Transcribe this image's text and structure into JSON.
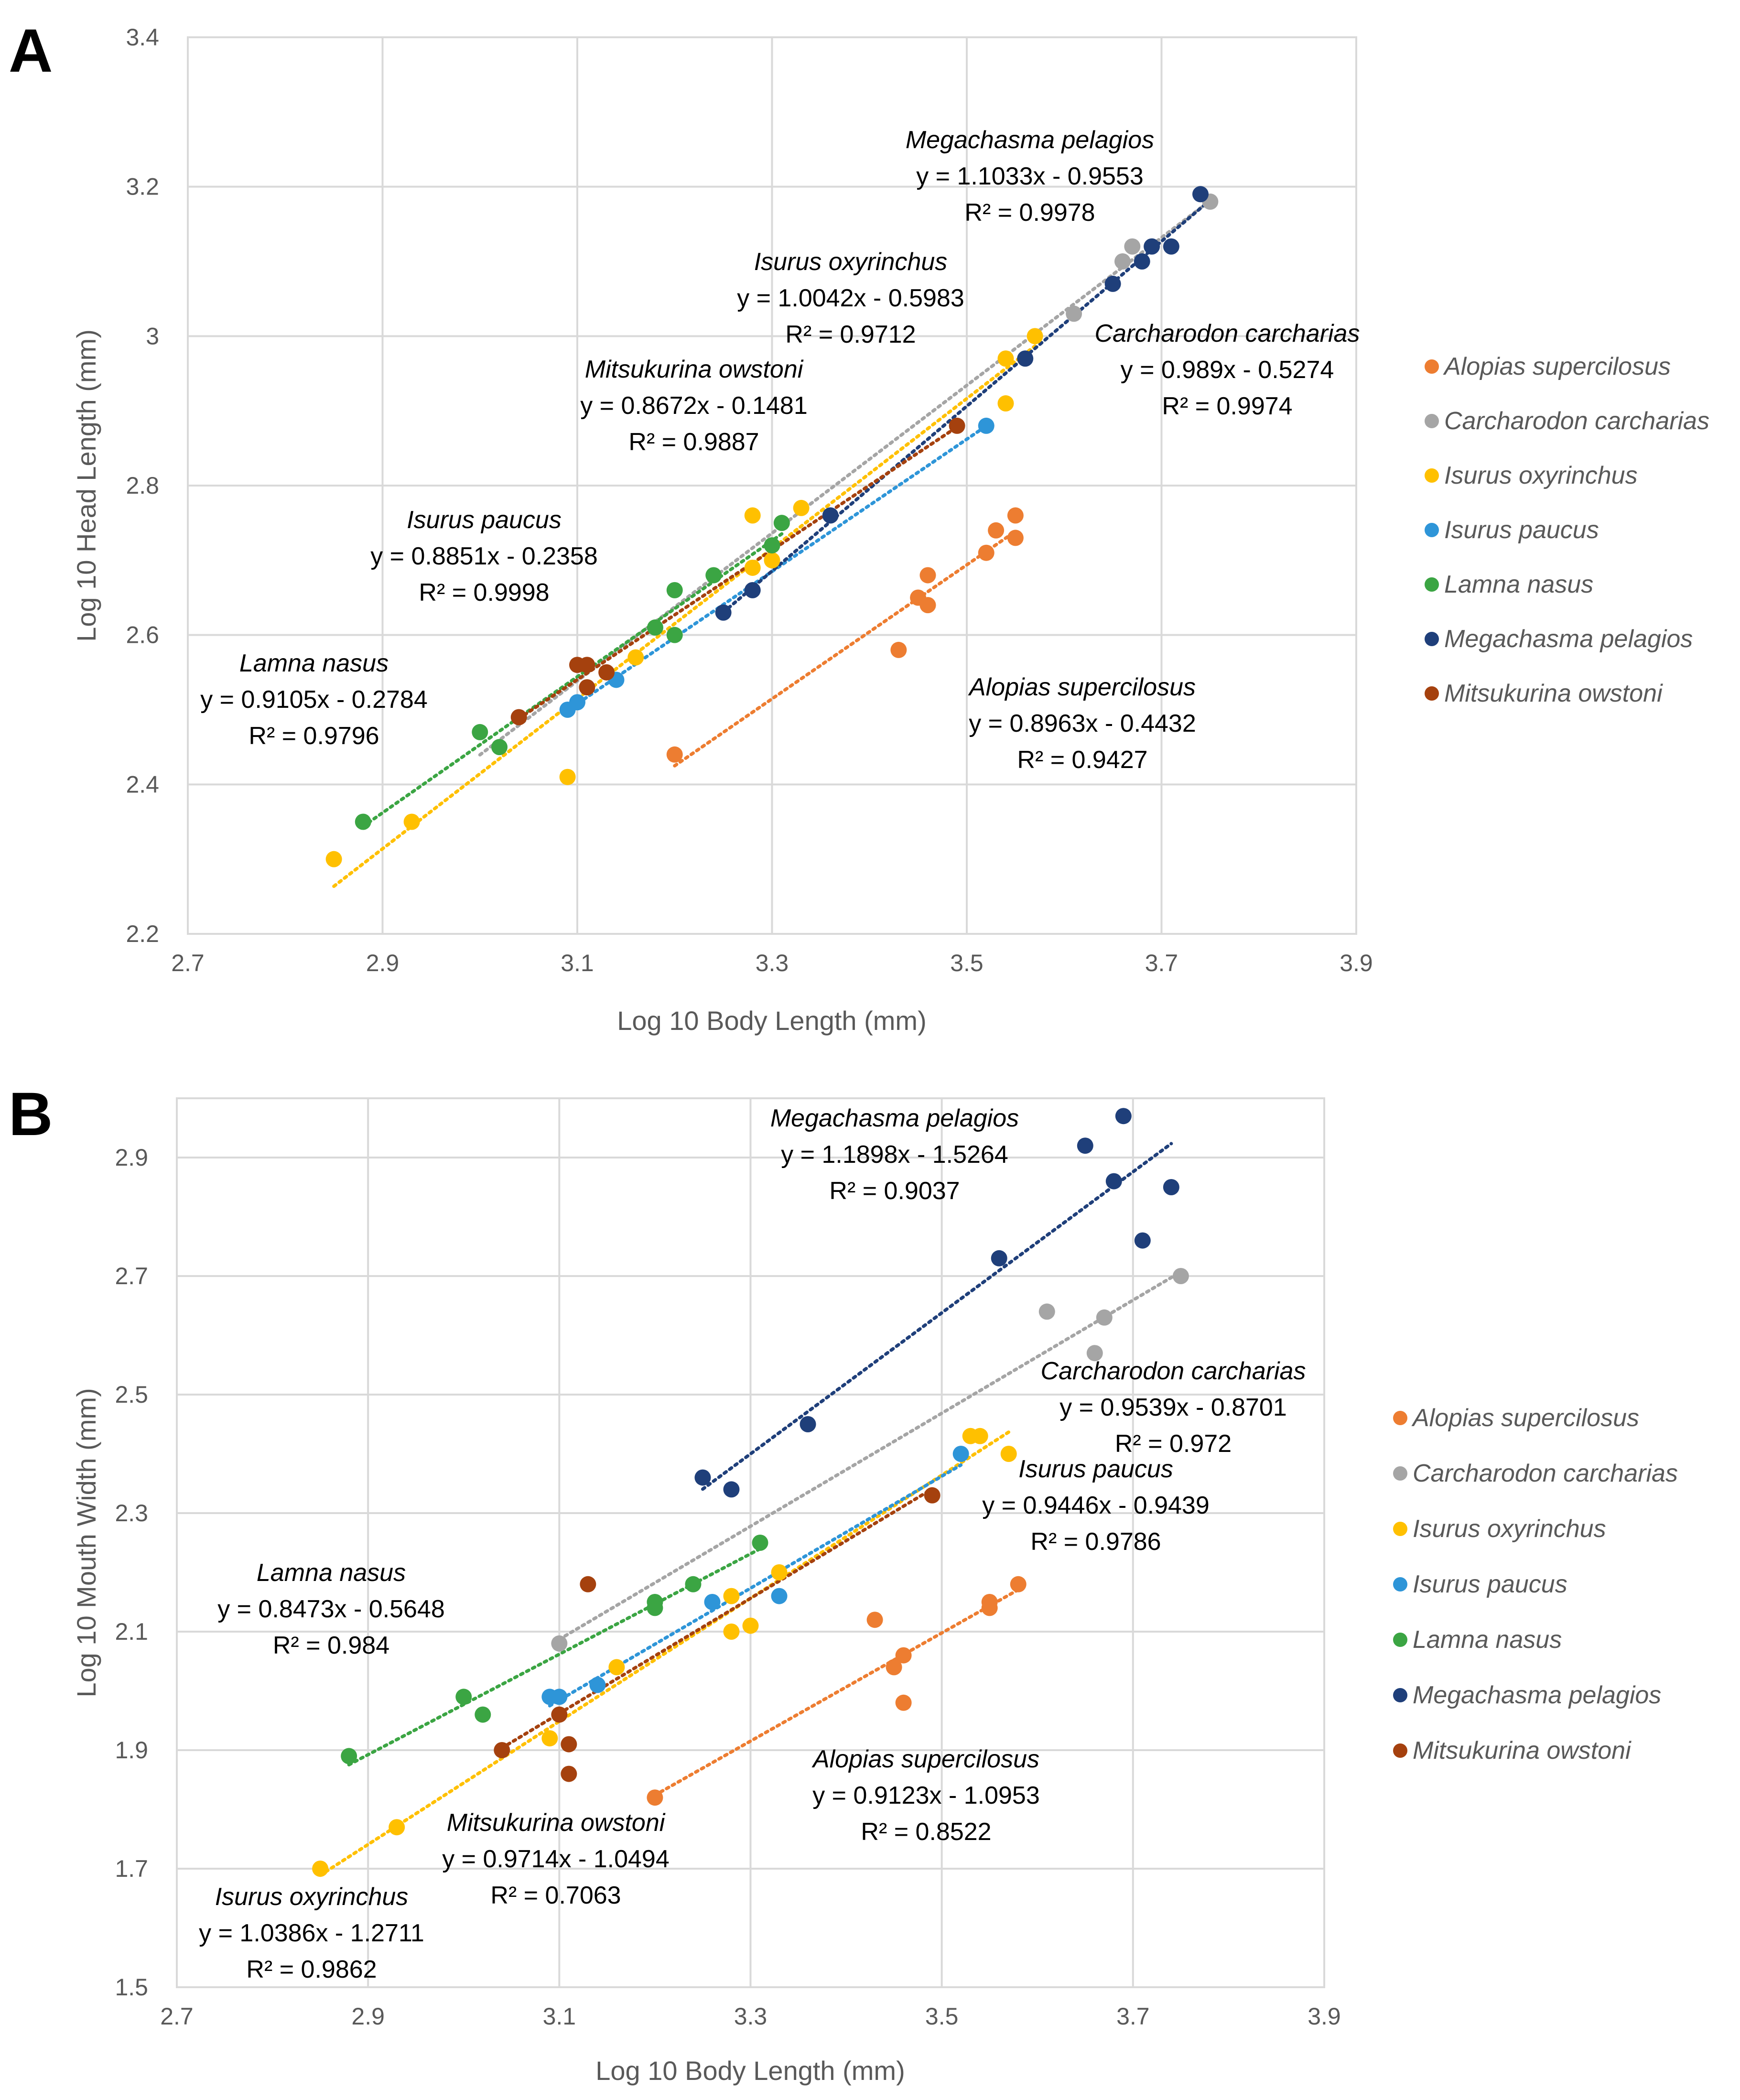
{
  "colors": {
    "Alopias supercilosus": "#ED7D31",
    "Carcharodon carcharias": "#A5A5A5",
    "Isurus oxyrinchus": "#FFC000",
    "Isurus paucus": "#2E95D8",
    "Lamna nasus": "#3BA543",
    "Megachasma pelagios": "#1F3F7A",
    "Mitsukurina owstoni": "#A5410E"
  },
  "chart_data": [
    {
      "type": "scatter",
      "panel_label": "A",
      "title": "",
      "xlabel": "Log 10 Body Length  (mm)",
      "ylabel": "Log 10 Head Length  (mm)",
      "xlim": [
        2.7,
        3.9
      ],
      "ylim": [
        2.2,
        3.4
      ],
      "xticks": [
        "2.7",
        "2.9",
        "3.1",
        "3.3",
        "3.5",
        "3.7",
        "3.9"
      ],
      "yticks": [
        "2.2",
        "2.4",
        "2.6",
        "2.8",
        "3",
        "3.2",
        "3.4"
      ],
      "legend_position": "right",
      "legend": [
        "Alopias supercilosus",
        "Carcharodon carcharias",
        "Isurus oxyrinchus",
        "Isurus paucus",
        "Lamna nasus",
        "Megachasma pelagios",
        "Mitsukurina owstoni"
      ],
      "series": [
        {
          "name": "Alopias supercilosus",
          "x": [
            3.2,
            3.43,
            3.45,
            3.46,
            3.46,
            3.52,
            3.53,
            3.55,
            3.55
          ],
          "y": [
            2.44,
            2.58,
            2.65,
            2.64,
            2.68,
            2.71,
            2.74,
            2.76,
            2.73
          ],
          "trend": {
            "x": [
              3.2,
              3.55
            ],
            "equation": "y = 0.8963x - 0.4432",
            "r2": "R² = 0.9427"
          }
        },
        {
          "name": "Carcharodon carcharias",
          "x": [
            3.61,
            3.66,
            3.67,
            3.75
          ],
          "y": [
            3.03,
            3.1,
            3.12,
            3.18
          ],
          "trend": {
            "x": [
              3.0,
              3.75
            ],
            "equation": "y = 0.989x - 0.5274",
            "r2": "R² = 0.9974"
          }
        },
        {
          "name": "Isurus oxyrinchus",
          "x": [
            2.85,
            2.93,
            3.09,
            3.16,
            3.28,
            3.28,
            3.3,
            3.33,
            3.54,
            3.54,
            3.57
          ],
          "y": [
            2.3,
            2.35,
            2.41,
            2.57,
            2.69,
            2.76,
            2.7,
            2.77,
            2.91,
            2.97,
            3.0
          ],
          "trend": {
            "x": [
              2.85,
              3.57
            ],
            "equation": "y = 1.0042x - 0.5983",
            "r2": "R² = 0.9712"
          }
        },
        {
          "name": "Isurus paucus",
          "x": [
            3.09,
            3.1,
            3.14,
            3.52
          ],
          "y": [
            2.5,
            2.51,
            2.54,
            2.88
          ],
          "trend": {
            "x": [
              3.09,
              3.52
            ],
            "equation": "y = 0.8851x - 0.2358",
            "r2": "R² = 0.9998"
          }
        },
        {
          "name": "Lamna nasus",
          "x": [
            2.88,
            3.0,
            3.02,
            3.18,
            3.2,
            3.2,
            3.24,
            3.3,
            3.31
          ],
          "y": [
            2.35,
            2.47,
            2.45,
            2.61,
            2.6,
            2.66,
            2.68,
            2.72,
            2.75
          ],
          "trend": {
            "x": [
              2.88,
              3.31
            ],
            "equation": "y = 0.9105x - 0.2784",
            "r2": "R² = 0.9796"
          }
        },
        {
          "name": "Megachasma pelagios",
          "x": [
            3.25,
            3.28,
            3.36,
            3.56,
            3.65,
            3.68,
            3.69,
            3.71,
            3.74
          ],
          "y": [
            2.63,
            2.66,
            2.76,
            2.97,
            3.07,
            3.1,
            3.12,
            3.12,
            3.19
          ],
          "trend": {
            "x": [
              3.25,
              3.75
            ],
            "equation": "y = 1.1033x - 0.9553",
            "r2": "R² = 0.9978"
          }
        },
        {
          "name": "Mitsukurina owstoni",
          "x": [
            3.04,
            3.1,
            3.11,
            3.11,
            3.13,
            3.49
          ],
          "y": [
            2.49,
            2.56,
            2.53,
            2.56,
            2.55,
            2.88
          ],
          "trend": {
            "x": [
              3.04,
              3.49
            ],
            "equation": "y = 0.8672x - 0.1481",
            "r2": "R² = 0.9887"
          }
        }
      ]
    },
    {
      "type": "scatter",
      "panel_label": "B",
      "title": "",
      "xlabel": "Log 10 Body Length  (mm)",
      "ylabel": "Log 10 Mouth Width  (mm)",
      "xlim": [
        2.7,
        3.9
      ],
      "ylim": [
        1.5,
        3.0
      ],
      "xticks": [
        "2.7",
        "2.9",
        "3.1",
        "3.3",
        "3.5",
        "3.7",
        "3.9"
      ],
      "yticks": [
        "1.5",
        "1.7",
        "1.9",
        "2.1",
        "2.3",
        "2.5",
        "2.7",
        "2.9"
      ],
      "legend_position": "right",
      "legend": [
        "Alopias supercilosus",
        "Carcharodon carcharias",
        "Isurus oxyrinchus",
        "Isurus paucus",
        "Lamna nasus",
        "Megachasma pelagios",
        "Mitsukurina owstoni"
      ],
      "series": [
        {
          "name": "Alopias supercilosus",
          "x": [
            3.2,
            3.43,
            3.45,
            3.46,
            3.46,
            3.55,
            3.55,
            3.58
          ],
          "y": [
            1.82,
            2.12,
            2.04,
            2.06,
            1.98,
            2.14,
            2.15,
            2.18
          ],
          "trend": {
            "x": [
              3.2,
              3.58
            ],
            "equation": "y = 0.9123x - 1.0953",
            "r2": "R² = 0.8522"
          }
        },
        {
          "name": "Carcharodon carcharias",
          "x": [
            3.1,
            3.61,
            3.66,
            3.67,
            3.75
          ],
          "y": [
            2.08,
            2.64,
            2.57,
            2.63,
            2.7
          ],
          "trend": {
            "x": [
              3.1,
              3.75
            ],
            "equation": "y = 0.9539x - 0.8701",
            "r2": "R² = 0.972"
          }
        },
        {
          "name": "Isurus oxyrinchus",
          "x": [
            2.85,
            2.93,
            3.09,
            3.16,
            3.28,
            3.28,
            3.3,
            3.33,
            3.53,
            3.54,
            3.57
          ],
          "y": [
            1.7,
            1.77,
            1.92,
            2.04,
            2.1,
            2.16,
            2.11,
            2.2,
            2.43,
            2.43,
            2.4
          ],
          "trend": {
            "x": [
              2.85,
              3.57
            ],
            "equation": "y = 1.0386x - 1.2711",
            "r2": "R² = 0.9862"
          }
        },
        {
          "name": "Isurus paucus",
          "x": [
            3.09,
            3.1,
            3.14,
            3.26,
            3.33,
            3.52
          ],
          "y": [
            1.99,
            1.99,
            2.01,
            2.15,
            2.16,
            2.4
          ],
          "trend": {
            "x": [
              3.09,
              3.52
            ],
            "equation": "y = 0.9446x - 0.9439",
            "r2": "R² = 0.9786"
          }
        },
        {
          "name": "Lamna nasus",
          "x": [
            2.88,
            3.0,
            3.02,
            3.2,
            3.2,
            3.24,
            3.31
          ],
          "y": [
            1.89,
            1.99,
            1.96,
            2.14,
            2.15,
            2.18,
            2.25
          ],
          "trend": {
            "x": [
              2.88,
              3.31
            ],
            "equation": "y = 0.8473x - 0.5648",
            "r2": "R² = 0.984"
          }
        },
        {
          "name": "Megachasma pelagios",
          "x": [
            3.25,
            3.28,
            3.36,
            3.56,
            3.65,
            3.68,
            3.69,
            3.71,
            3.74
          ],
          "y": [
            2.36,
            2.34,
            2.45,
            2.73,
            2.92,
            2.86,
            2.97,
            2.76,
            2.85
          ],
          "trend": {
            "x": [
              3.25,
              3.74
            ],
            "equation": "y = 1.1898x - 1.5264",
            "r2": "R² = 0.9037"
          }
        },
        {
          "name": "Mitsukurina owstoni",
          "x": [
            3.04,
            3.1,
            3.11,
            3.11,
            3.13,
            3.49
          ],
          "y": [
            1.9,
            1.96,
            1.91,
            1.86,
            2.18,
            2.33
          ],
          "trend": {
            "x": [
              3.04,
              3.49
            ],
            "equation": "y = 0.9714x - 1.0494",
            "r2": "R² = 0.7063"
          }
        }
      ]
    }
  ]
}
